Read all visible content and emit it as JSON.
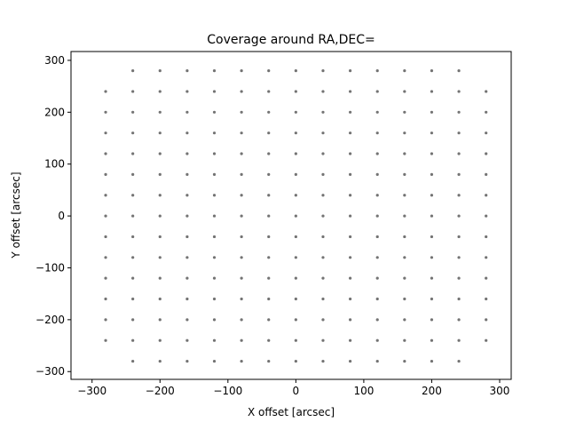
{
  "chart_data": {
    "type": "scatter",
    "title": "Coverage around RA,DEC=",
    "x_label": "X offset [arcsec]",
    "y_label": "Y offset [arcsec]",
    "color": "#000000",
    "xlim": [
      -331,
      317
    ],
    "ylim": [
      -315,
      317
    ],
    "xticks": [
      {
        "value": -300,
        "label": "−300"
      },
      {
        "value": -200,
        "label": "−200"
      },
      {
        "value": -100,
        "label": "−100"
      },
      0,
      100,
      200,
      300
    ],
    "yticks": [
      {
        "value": -300,
        "label": "−300"
      },
      {
        "value": -200,
        "label": "−200"
      },
      {
        "value": -100,
        "label": "−100"
      },
      0,
      100,
      200,
      300
    ],
    "x": [
      -240,
      -200,
      -160,
      -120,
      -80,
      -40,
      0,
      40,
      80,
      120,
      160,
      200,
      240,
      -280,
      -240,
      -200,
      -160,
      -120,
      -80,
      -40,
      0,
      40,
      80,
      120,
      160,
      200,
      240,
      280,
      -280,
      -240,
      -200,
      -160,
      -120,
      -80,
      -40,
      0,
      40,
      80,
      120,
      160,
      200,
      240,
      280,
      -280,
      -240,
      -200,
      -160,
      -120,
      -80,
      -40,
      0,
      40,
      80,
      120,
      160,
      200,
      240,
      280,
      -280,
      -240,
      -200,
      -160,
      -120,
      -80,
      -40,
      0,
      40,
      80,
      120,
      160,
      200,
      240,
      280,
      -280,
      -240,
      -200,
      -160,
      -120,
      -80,
      -40,
      0,
      40,
      80,
      120,
      160,
      200,
      240,
      280,
      -280,
      -240,
      -200,
      -160,
      -120,
      -80,
      -40,
      0,
      40,
      80,
      120,
      160,
      200,
      240,
      280,
      -280,
      -240,
      -200,
      -160,
      -120,
      -80,
      -40,
      0,
      40,
      80,
      120,
      160,
      200,
      240,
      280,
      -280,
      -240,
      -200,
      -160,
      -120,
      -80,
      -40,
      0,
      40,
      80,
      120,
      160,
      200,
      240,
      280,
      -280,
      -240,
      -200,
      -160,
      -120,
      -80,
      -40,
      0,
      40,
      80,
      120,
      160,
      200,
      240,
      280,
      -280,
      -240,
      -200,
      -160,
      -120,
      -80,
      -40,
      0,
      40,
      80,
      120,
      160,
      200,
      240,
      280,
      -280,
      -240,
      -200,
      -160,
      -120,
      -80,
      -40,
      0,
      40,
      80,
      120,
      160,
      200,
      240,
      280,
      -280,
      -240,
      -200,
      -160,
      -120,
      -80,
      -40,
      0,
      40,
      80,
      120,
      160,
      200,
      240,
      280,
      -280,
      -240,
      -200,
      -160,
      -120,
      -80,
      -40,
      0,
      40,
      80,
      120,
      160,
      200,
      240,
      280,
      -240,
      -200,
      -160,
      -120,
      -80,
      -40,
      0,
      40,
      80,
      120,
      160,
      200,
      240
    ],
    "y": [
      -280,
      -280,
      -280,
      -280,
      -280,
      -280,
      -280,
      -280,
      -280,
      -280,
      -280,
      -280,
      -280,
      -240,
      -240,
      -240,
      -240,
      -240,
      -240,
      -240,
      -240,
      -240,
      -240,
      -240,
      -240,
      -240,
      -240,
      -240,
      -200,
      -200,
      -200,
      -200,
      -200,
      -200,
      -200,
      -200,
      -200,
      -200,
      -200,
      -200,
      -200,
      -200,
      -200,
      -160,
      -160,
      -160,
      -160,
      -160,
      -160,
      -160,
      -160,
      -160,
      -160,
      -160,
      -160,
      -160,
      -160,
      -160,
      -120,
      -120,
      -120,
      -120,
      -120,
      -120,
      -120,
      -120,
      -120,
      -120,
      -120,
      -120,
      -120,
      -120,
      -120,
      -80,
      -80,
      -80,
      -80,
      -80,
      -80,
      -80,
      -80,
      -80,
      -80,
      -80,
      -80,
      -80,
      -80,
      -80,
      -40,
      -40,
      -40,
      -40,
      -40,
      -40,
      -40,
      -40,
      -40,
      -40,
      -40,
      -40,
      -40,
      -40,
      -40,
      0,
      0,
      0,
      0,
      0,
      0,
      0,
      0,
      0,
      0,
      0,
      0,
      0,
      0,
      0,
      40,
      40,
      40,
      40,
      40,
      40,
      40,
      40,
      40,
      40,
      40,
      40,
      40,
      40,
      40,
      80,
      80,
      80,
      80,
      80,
      80,
      80,
      80,
      80,
      80,
      80,
      80,
      80,
      80,
      80,
      120,
      120,
      120,
      120,
      120,
      120,
      120,
      120,
      120,
      120,
      120,
      120,
      120,
      120,
      120,
      160,
      160,
      160,
      160,
      160,
      160,
      160,
      160,
      160,
      160,
      160,
      160,
      160,
      160,
      160,
      200,
      200,
      200,
      200,
      200,
      200,
      200,
      200,
      200,
      200,
      200,
      200,
      200,
      200,
      200,
      240,
      240,
      240,
      240,
      240,
      240,
      240,
      240,
      240,
      240,
      240,
      240,
      240,
      240,
      240,
      280,
      280,
      280,
      280,
      280,
      280,
      280,
      280,
      280,
      280,
      280,
      280,
      280
    ]
  }
}
